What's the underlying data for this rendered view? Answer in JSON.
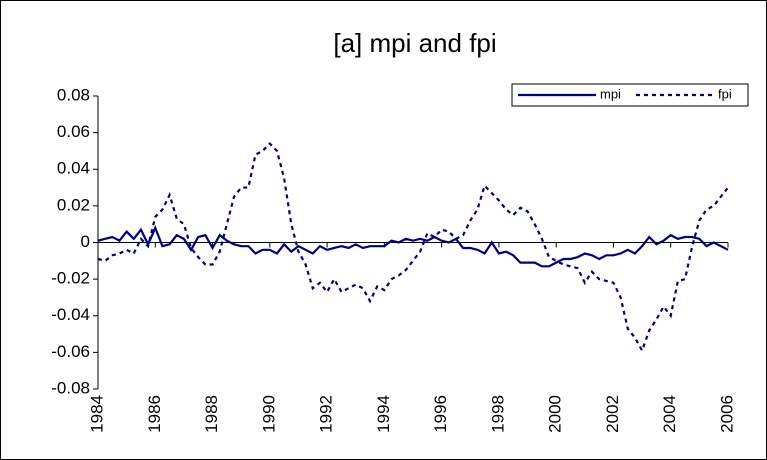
{
  "chart_data": {
    "type": "line",
    "title": "[a] mpi and fpi",
    "x": [
      1984,
      1984.25,
      1984.5,
      1984.75,
      1985,
      1985.25,
      1985.5,
      1985.75,
      1986,
      1986.25,
      1986.5,
      1986.75,
      1987,
      1987.25,
      1987.5,
      1987.75,
      1988,
      1988.25,
      1988.5,
      1988.75,
      1989,
      1989.25,
      1989.5,
      1989.75,
      1990,
      1990.25,
      1990.5,
      1990.75,
      1991,
      1991.25,
      1991.5,
      1991.75,
      1992,
      1992.25,
      1992.5,
      1992.75,
      1993,
      1993.25,
      1993.5,
      1993.75,
      1994,
      1994.25,
      1994.5,
      1994.75,
      1995,
      1995.25,
      1995.5,
      1995.75,
      1996,
      1996.25,
      1996.5,
      1996.75,
      1997,
      1997.25,
      1997.5,
      1997.75,
      1998,
      1998.25,
      1998.5,
      1998.75,
      1999,
      1999.25,
      1999.5,
      1999.75,
      2000,
      2000.25,
      2000.5,
      2000.75,
      2001,
      2001.25,
      2001.5,
      2001.75,
      2002,
      2002.25,
      2002.5,
      2002.75,
      2003,
      2003.25,
      2003.5,
      2003.75,
      2004,
      2004.25,
      2004.5,
      2004.75,
      2005,
      2005.25,
      2005.5,
      2005.75,
      2006
    ],
    "series": [
      {
        "name": "mpi",
        "color": "#000080",
        "dash": false,
        "values": [
          0.001,
          0.002,
          0.003,
          0.001,
          0.006,
          0.002,
          0.007,
          -0.001,
          0.008,
          -0.002,
          -0.001,
          0.004,
          0.002,
          -0.004,
          0.003,
          0.004,
          -0.003,
          0.004,
          0.001,
          -0.001,
          -0.002,
          -0.002,
          -0.006,
          -0.004,
          -0.004,
          -0.006,
          -0.001,
          -0.005,
          -0.002,
          -0.004,
          -0.006,
          -0.002,
          -0.004,
          -0.003,
          -0.002,
          -0.003,
          -0.001,
          -0.003,
          -0.002,
          -0.002,
          -0.002,
          0.001,
          0,
          0.002,
          0.001,
          0.002,
          0.001,
          0.003,
          0.001,
          0,
          0.002,
          -0.003,
          -0.003,
          -0.004,
          -0.006,
          0,
          -0.006,
          -0.005,
          -0.007,
          -0.011,
          -0.011,
          -0.011,
          -0.013,
          -0.013,
          -0.011,
          -0.009,
          -0.009,
          -0.008,
          -0.006,
          -0.007,
          -0.009,
          -0.007,
          -0.007,
          -0.006,
          -0.004,
          -0.006,
          -0.002,
          0.003,
          -0.001,
          0.001,
          0.004,
          0.002,
          0.003,
          0.003,
          0.002,
          -0.002,
          0,
          -0.002,
          -0.004
        ]
      },
      {
        "name": "fpi",
        "color": "#000080",
        "dash": true,
        "values": [
          -0.009,
          -0.01,
          -0.007,
          -0.006,
          -0.004,
          -0.006,
          0.002,
          -0.002,
          0.014,
          0.018,
          0.026,
          0.013,
          0.01,
          -0.003,
          -0.008,
          -0.012,
          -0.012,
          -0.005,
          0.01,
          0.025,
          0.03,
          0.03,
          0.048,
          0.05,
          0.054,
          0.05,
          0.035,
          0.01,
          -0.005,
          -0.012,
          -0.025,
          -0.022,
          -0.027,
          -0.02,
          -0.027,
          -0.025,
          -0.023,
          -0.025,
          -0.032,
          -0.024,
          -0.026,
          -0.02,
          -0.018,
          -0.015,
          -0.01,
          -0.005,
          0.005,
          0.003,
          0.007,
          0.006,
          0.002,
          0.004,
          0.012,
          0.018,
          0.031,
          0.027,
          0.023,
          0.018,
          0.015,
          0.019,
          0.017,
          0.01,
          0.002,
          -0.008,
          -0.01,
          -0.012,
          -0.013,
          -0.014,
          -0.022,
          -0.016,
          -0.02,
          -0.021,
          -0.022,
          -0.03,
          -0.047,
          -0.052,
          -0.059,
          -0.048,
          -0.042,
          -0.035,
          -0.04,
          -0.021,
          -0.02,
          -0.002,
          0.012,
          0.018,
          0.02,
          0.025,
          0.03
        ]
      }
    ],
    "xlim": [
      1984,
      2006
    ],
    "xticks": [
      1984,
      1986,
      1988,
      1990,
      1992,
      1994,
      1996,
      1998,
      2000,
      2002,
      2004,
      2006
    ],
    "ylim": [
      -0.08,
      0.08
    ],
    "yticks": [
      -0.08,
      -0.06,
      -0.04,
      -0.02,
      0,
      0.02,
      0.04,
      0.06,
      0.08
    ],
    "grid": false,
    "legend": "upper right"
  }
}
